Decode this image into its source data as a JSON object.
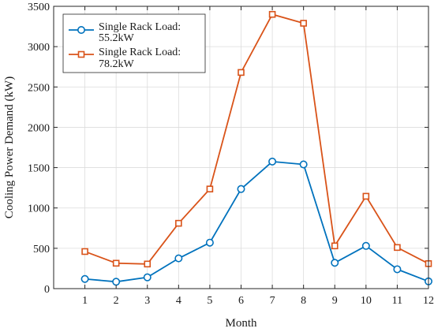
{
  "chart_data": {
    "type": "line",
    "xlabel": "Month",
    "ylabel": "Cooling Power Demand (kW)",
    "x": [
      1,
      2,
      3,
      4,
      5,
      6,
      7,
      8,
      9,
      10,
      11,
      12
    ],
    "xticks": [
      "1",
      "2",
      "3",
      "4",
      "5",
      "6",
      "7",
      "8",
      "9",
      "10",
      "11",
      "12"
    ],
    "xlim": [
      0,
      12
    ],
    "yticks": [
      "0",
      "500",
      "1000",
      "1500",
      "2000",
      "2500",
      "3000",
      "3500"
    ],
    "ylim": [
      0,
      3500
    ],
    "grid": true,
    "legend_position": "top-left",
    "series": [
      {
        "name_lines": [
          "Single Rack Load:",
          "55.2kW"
        ],
        "color": "#0072bd",
        "marker": "circle",
        "values": [
          120,
          85,
          140,
          375,
          570,
          1235,
          1575,
          1540,
          320,
          530,
          240,
          90
        ]
      },
      {
        "name_lines": [
          "Single Rack Load:",
          "78.2kW"
        ],
        "color": "#d95319",
        "marker": "square",
        "values": [
          460,
          315,
          305,
          810,
          1235,
          2680,
          3400,
          3290,
          530,
          1145,
          510,
          310
        ]
      }
    ]
  }
}
